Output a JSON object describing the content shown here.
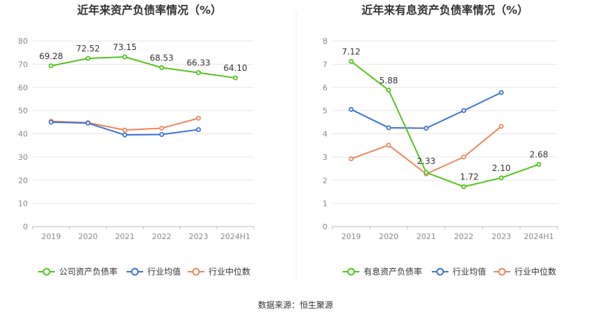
{
  "chart_data": [
    {
      "type": "line",
      "title": "近年来资产负债率情况（%）",
      "categories": [
        "2019",
        "2020",
        "2021",
        "2022",
        "2023",
        "2024H1"
      ],
      "ylim": [
        0,
        80
      ],
      "yticks": [
        "0",
        "10",
        "20",
        "30",
        "40",
        "50",
        "60",
        "70",
        "80"
      ],
      "grid": true,
      "legend_position": "bottom",
      "series": [
        {
          "name": "公司资产负债率",
          "color": "#52c41a",
          "values": [
            69.28,
            72.52,
            73.15,
            68.53,
            66.33,
            64.1
          ],
          "labels": [
            "69.28",
            "72.52",
            "73.15",
            "68.53",
            "66.33",
            "64.10"
          ]
        },
        {
          "name": "行业均值",
          "color": "#3a72d8",
          "values": [
            45.0,
            44.6,
            39.5,
            39.7,
            41.8,
            null
          ]
        },
        {
          "name": "行业中位数",
          "color": "#f0855a",
          "values": [
            45.4,
            44.8,
            41.6,
            42.4,
            46.7,
            null
          ]
        }
      ]
    },
    {
      "type": "line",
      "title": "近年来有息资产负债率情况（%）",
      "categories": [
        "2019",
        "2020",
        "2021",
        "2022",
        "2023",
        "2024H1"
      ],
      "ylim": [
        0,
        8
      ],
      "yticks": [
        "0",
        "1",
        "2",
        "3",
        "4",
        "5",
        "6",
        "7",
        "8"
      ],
      "grid": true,
      "legend_position": "bottom",
      "series": [
        {
          "name": "有息资产负债率",
          "color": "#52c41a",
          "values": [
            7.12,
            5.88,
            2.33,
            1.72,
            2.1,
            2.68
          ],
          "labels": [
            "7.12",
            "5.88",
            "2.33",
            "1.72",
            "2.10",
            "2.68"
          ]
        },
        {
          "name": "行业均值",
          "color": "#3a72d8",
          "values": [
            5.05,
            4.26,
            4.24,
            5.0,
            5.78,
            null
          ]
        },
        {
          "name": "行业中位数",
          "color": "#f0855a",
          "values": [
            2.92,
            3.51,
            2.27,
            3.0,
            4.32,
            null
          ]
        }
      ]
    }
  ],
  "footer": {
    "source": "数据来源：恒生聚源"
  }
}
